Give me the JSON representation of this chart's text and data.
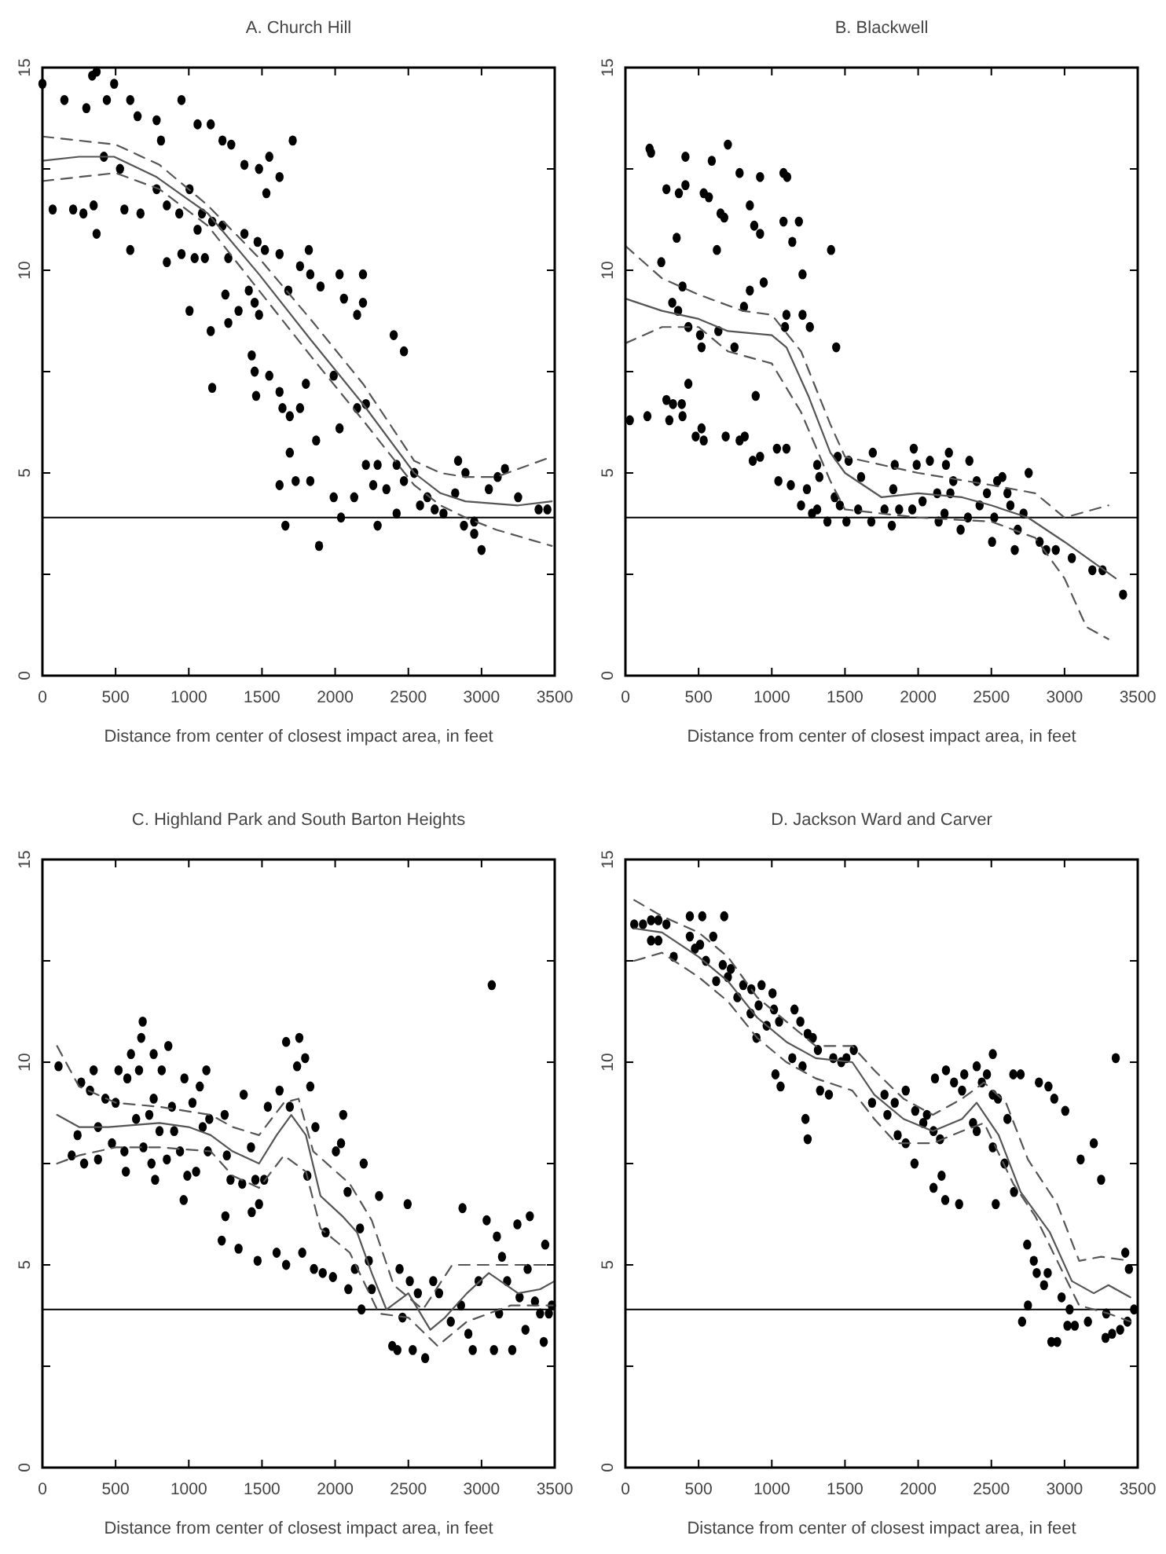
{
  "chart_data": [
    {
      "type": "scatter",
      "title": "A. Church Hill",
      "xlabel": "Distance from center of closest impact area, in feet",
      "xlim": [
        0,
        3500
      ],
      "ylim": [
        0,
        15
      ],
      "xticks": [
        0,
        500,
        1000,
        1500,
        2000,
        2500,
        3000,
        3500
      ],
      "yticks": [
        0,
        {
          "value": 2.5,
          "label": null
        },
        5,
        {
          "value": 7.5,
          "label": null
        },
        10,
        {
          "value": 12.5,
          "label": null
        },
        15
      ],
      "ref_lines": [
        {
          "axis": "y",
          "value": 3.9,
          "color": "#000000"
        }
      ],
      "series": [
        {
          "type": "scatter",
          "color": "#000000",
          "marker": "circle",
          "x": [
            0,
            150,
            340,
            370,
            300,
            440,
            490,
            600,
            650,
            780,
            950,
            810,
            1060,
            1150,
            1230,
            1290,
            1710,
            1550,
            1380,
            1480,
            1620,
            1530,
            420,
            530,
            70,
            210,
            280,
            350,
            560,
            670,
            780,
            850,
            935,
            1005,
            1090,
            1160,
            1060,
            1230,
            370,
            1380,
            1470,
            600,
            850,
            950,
            1040,
            1110,
            1270,
            1520,
            1620,
            1760,
            1830,
            2030,
            2190,
            1820,
            1250,
            1410,
            1450,
            1680,
            1900,
            2060,
            2190,
            2150,
            1005,
            1150,
            1270,
            1340,
            1480,
            2400,
            2470,
            1430,
            1450,
            1550,
            1460,
            1620,
            1640,
            1760,
            1800,
            1990,
            1160,
            2150,
            2210,
            2030,
            1690,
            1870,
            1690,
            1620,
            1730,
            1830,
            1660,
            1890,
            1990,
            2040,
            2130,
            2210,
            2260,
            2290,
            2290,
            2350,
            2420,
            2420,
            2470,
            2540,
            2580,
            2630,
            2680,
            2740,
            2820,
            2840,
            2890,
            2880,
            2950,
            2950,
            3000,
            3050,
            3110,
            3160,
            3250,
            3390,
            3450
          ],
          "values": [
            14.6,
            14.2,
            14.8,
            14.9,
            14.0,
            14.2,
            14.6,
            14.2,
            13.8,
            13.7,
            14.2,
            13.2,
            13.6,
            13.6,
            13.2,
            13.1,
            13.2,
            12.8,
            12.6,
            12.5,
            12.3,
            11.9,
            12.8,
            12.5,
            11.5,
            11.5,
            11.4,
            11.6,
            11.5,
            11.4,
            12.0,
            11.6,
            11.4,
            12.0,
            11.4,
            11.2,
            11.0,
            11.1,
            10.9,
            10.9,
            10.7,
            10.5,
            10.2,
            10.4,
            10.3,
            10.3,
            10.3,
            10.5,
            10.4,
            10.1,
            9.9,
            9.9,
            9.9,
            10.5,
            9.4,
            9.5,
            9.2,
            9.5,
            9.6,
            9.3,
            9.2,
            8.9,
            9.0,
            8.5,
            8.7,
            9.0,
            8.9,
            8.4,
            8.0,
            7.9,
            7.5,
            7.4,
            6.9,
            7.0,
            6.6,
            6.6,
            7.2,
            7.4,
            7.1,
            6.6,
            6.7,
            6.1,
            6.4,
            5.8,
            5.5,
            4.7,
            4.8,
            4.8,
            3.7,
            3.2,
            4.4,
            3.9,
            4.4,
            5.2,
            4.7,
            5.2,
            3.7,
            4.6,
            5.2,
            4.0,
            4.8,
            5.0,
            4.2,
            4.4,
            4.1,
            4.0,
            4.5,
            5.3,
            5.0,
            3.7,
            3.8,
            3.5,
            3.1,
            4.6,
            4.9,
            5.1,
            4.4,
            4.1,
            4.1
          ]
        },
        {
          "type": "line",
          "color": "#555555",
          "line_style": "solid",
          "marker": "none",
          "x": [
            0,
            250,
            490,
            780,
            1130,
            1480,
            1830,
            2190,
            2540,
            2720,
            2890,
            3250,
            3480
          ],
          "values": [
            12.7,
            12.8,
            12.8,
            12.3,
            11.4,
            9.9,
            8.3,
            6.7,
            5.0,
            4.5,
            4.3,
            4.2,
            4.3
          ]
        },
        {
          "type": "line",
          "color": "#555555",
          "line_style": "dashed",
          "marker": "none",
          "x": [
            0,
            500,
            800,
            1130,
            1480,
            1830,
            2190,
            2540,
            2720,
            2890,
            3100,
            3480
          ],
          "values": [
            13.3,
            13.1,
            12.6,
            11.6,
            10.3,
            8.8,
            7.2,
            5.3,
            5.0,
            4.9,
            4.9,
            5.4
          ]
        },
        {
          "type": "line",
          "color": "#555555",
          "line_style": "dashed",
          "marker": "none",
          "x": [
            0,
            500,
            800,
            1130,
            1480,
            1830,
            2190,
            2540,
            2720,
            2890,
            3100,
            3480
          ],
          "values": [
            12.2,
            12.4,
            12.0,
            11.1,
            9.5,
            7.9,
            6.3,
            4.7,
            4.2,
            3.9,
            3.6,
            3.2
          ]
        }
      ]
    },
    {
      "type": "scatter",
      "title": "B. Blackwell",
      "xlabel": "Distance from center of closest impact area, in feet",
      "xlim": [
        0,
        3500
      ],
      "ylim": [
        0,
        15
      ],
      "xticks": [
        0,
        500,
        1000,
        1500,
        2000,
        2500,
        3000,
        3500
      ],
      "yticks": [
        0,
        {
          "value": 2.5,
          "label": null
        },
        5,
        {
          "value": 7.5,
          "label": null
        },
        10,
        {
          "value": 12.5,
          "label": null
        },
        15
      ],
      "ref_lines": [
        {
          "axis": "y",
          "value": 3.9,
          "color": "#000000"
        }
      ],
      "series": [
        {
          "type": "scatter",
          "color": "#000000",
          "marker": "circle",
          "x": [
            165,
            175,
            700,
            410,
            590,
            780,
            920,
            1080,
            1105,
            280,
            365,
            410,
            535,
            570,
            650,
            675,
            850,
            880,
            920,
            1080,
            1185,
            1140,
            350,
            625,
            1405,
            245,
            1210,
            390,
            850,
            945,
            320,
            810,
            360,
            1100,
            1210,
            430,
            635,
            1090,
            1260,
            510,
            520,
            745,
            1440,
            430,
            30,
            150,
            280,
            325,
            385,
            300,
            390,
            890,
            520,
            480,
            535,
            685,
            780,
            815,
            920,
            870,
            1035,
            1100,
            1045,
            1130,
            1200,
            1240,
            1275,
            1310,
            1325,
            1310,
            1380,
            1430,
            1465,
            1450,
            1525,
            1510,
            1590,
            1610,
            1690,
            1680,
            1770,
            1820,
            1840,
            1830,
            1870,
            1960,
            1970,
            1990,
            2030,
            2080,
            2130,
            2140,
            2180,
            2190,
            2210,
            2220,
            2240,
            2290,
            2340,
            2350,
            2400,
            2420,
            2470,
            2505,
            2520,
            2540,
            2575,
            2610,
            2630,
            2660,
            2680,
            2720,
            2755,
            2830,
            2875,
            2940,
            3050,
            3190,
            3260,
            3400
          ],
          "values": [
            13.0,
            12.9,
            13.1,
            12.8,
            12.7,
            12.4,
            12.3,
            12.4,
            12.3,
            12.0,
            11.9,
            12.1,
            11.9,
            11.8,
            11.4,
            11.3,
            11.6,
            11.1,
            10.9,
            11.2,
            11.2,
            10.7,
            10.8,
            10.5,
            10.5,
            10.2,
            9.9,
            9.6,
            9.5,
            9.7,
            9.2,
            9.1,
            9.0,
            8.9,
            8.9,
            8.6,
            8.5,
            8.6,
            8.6,
            8.4,
            8.1,
            8.1,
            8.1,
            7.2,
            6.3,
            6.4,
            6.8,
            6.7,
            6.7,
            6.3,
            6.4,
            6.9,
            6.1,
            5.9,
            5.8,
            5.9,
            5.8,
            5.9,
            5.4,
            5.3,
            5.6,
            5.6,
            4.8,
            4.7,
            4.2,
            4.6,
            4.0,
            5.2,
            4.9,
            4.1,
            3.8,
            4.4,
            4.2,
            5.4,
            5.3,
            3.8,
            4.1,
            4.9,
            5.5,
            3.8,
            4.1,
            3.7,
            5.2,
            4.6,
            4.1,
            4.1,
            5.6,
            5.2,
            4.3,
            5.3,
            4.5,
            3.8,
            4.0,
            5.2,
            5.5,
            4.5,
            4.8,
            3.6,
            3.9,
            5.3,
            4.8,
            4.2,
            4.5,
            3.3,
            3.9,
            4.8,
            4.9,
            4.5,
            4.2,
            3.1,
            3.6,
            4.0,
            5.0,
            3.3,
            3.1,
            3.1,
            2.9,
            2.6,
            2.6,
            2.0
          ]
        },
        {
          "type": "line",
          "color": "#555555",
          "line_style": "solid",
          "marker": "none",
          "x": [
            0,
            250,
            500,
            700,
            1000,
            1100,
            1250,
            1400,
            1500,
            1750,
            2000,
            2300,
            2500,
            2750,
            3000,
            3350
          ],
          "values": [
            9.3,
            9.0,
            8.8,
            8.5,
            8.4,
            8.1,
            6.9,
            5.5,
            5.0,
            4.4,
            4.5,
            4.4,
            4.2,
            3.9,
            3.3,
            2.4
          ]
        },
        {
          "type": "line",
          "color": "#555555",
          "line_style": "dashed",
          "marker": "none",
          "x": [
            0,
            250,
            500,
            800,
            1000,
            1200,
            1400,
            1500,
            2000,
            2500,
            2800,
            3000,
            3300
          ],
          "values": [
            10.6,
            9.8,
            9.4,
            9.0,
            8.9,
            8.0,
            6.2,
            5.4,
            5.0,
            4.7,
            4.5,
            3.9,
            4.2
          ]
        },
        {
          "type": "line",
          "color": "#555555",
          "line_style": "dashed",
          "marker": "none",
          "x": [
            0,
            250,
            500,
            700,
            1000,
            1200,
            1400,
            1500,
            2000,
            2500,
            2800,
            3000,
            3150,
            3300
          ],
          "values": [
            8.2,
            8.6,
            8.6,
            8.0,
            7.7,
            6.5,
            4.8,
            4.1,
            3.9,
            3.8,
            3.4,
            2.4,
            1.2,
            0.9
          ]
        }
      ]
    },
    {
      "type": "scatter",
      "title": "C. Highland Park and South Barton Heights",
      "xlabel": "Distance from center of closest impact area, in feet",
      "xlim": [
        0,
        3500
      ],
      "ylim": [
        0,
        15
      ],
      "xticks": [
        0,
        500,
        1000,
        1500,
        2000,
        2500,
        3000,
        3500
      ],
      "yticks": [
        0,
        {
          "value": 2.5,
          "label": null
        },
        5,
        {
          "value": 7.5,
          "label": null
        },
        10,
        {
          "value": 12.5,
          "label": null
        },
        15
      ],
      "ref_lines": [
        {
          "axis": "y",
          "value": 3.9,
          "color": "#000000"
        }
      ],
      "series": [
        {
          "type": "scatter",
          "color": "#000000",
          "marker": "circle",
          "x": [
            110,
            200,
            240,
            265,
            285,
            325,
            350,
            380,
            380,
            430,
            475,
            500,
            520,
            560,
            570,
            580,
            605,
            640,
            660,
            675,
            685,
            690,
            730,
            745,
            760,
            770,
            760,
            800,
            815,
            850,
            860,
            885,
            900,
            940,
            965,
            970,
            990,
            1025,
            1050,
            1075,
            1095,
            1120,
            1130,
            1140,
            1225,
            1245,
            1250,
            1260,
            1285,
            1340,
            1365,
            1375,
            1425,
            1430,
            1455,
            1470,
            1480,
            1515,
            1540,
            1600,
            1620,
            1665,
            1665,
            1690,
            1740,
            1755,
            1775,
            1795,
            1830,
            1810,
            1855,
            1865,
            1915,
            1935,
            1985,
            2005,
            2040,
            2055,
            2085,
            2090,
            2135,
            2170,
            2180,
            2195,
            2230,
            2250,
            2300,
            2390,
            2425,
            2440,
            2460,
            2495,
            2510,
            2530,
            2565,
            2615,
            2670,
            2710,
            2790,
            2860,
            2870,
            2910,
            2940,
            2980,
            3035,
            3070,
            3085,
            3105,
            3120,
            3140,
            3175,
            3210,
            3245,
            3260,
            3300,
            3315,
            3330,
            3365,
            3400,
            3425,
            3435,
            3460,
            3480
          ],
          "values": [
            9.9,
            7.7,
            8.2,
            9.5,
            7.5,
            9.3,
            9.8,
            8.4,
            7.6,
            9.1,
            8.0,
            9.0,
            9.8,
            7.8,
            7.3,
            9.6,
            10.2,
            8.6,
            9.8,
            10.6,
            11.0,
            7.9,
            8.7,
            7.5,
            9.1,
            7.1,
            10.2,
            8.3,
            9.8,
            7.6,
            10.4,
            8.9,
            8.3,
            7.8,
            6.6,
            9.6,
            7.2,
            9.0,
            7.3,
            9.4,
            8.4,
            9.8,
            7.8,
            8.6,
            5.6,
            8.7,
            6.2,
            7.7,
            7.1,
            5.4,
            7.0,
            9.2,
            7.9,
            6.3,
            7.1,
            5.1,
            6.5,
            7.1,
            8.9,
            5.3,
            9.3,
            10.5,
            5.0,
            8.9,
            9.9,
            10.6,
            5.3,
            10.1,
            9.4,
            7.2,
            4.9,
            8.4,
            4.8,
            5.8,
            4.7,
            7.8,
            8.0,
            8.7,
            6.8,
            4.4,
            4.9,
            5.9,
            3.9,
            7.5,
            5.1,
            4.4,
            6.7,
            3.0,
            2.9,
            4.9,
            3.7,
            6.5,
            4.6,
            2.9,
            4.3,
            2.7,
            4.6,
            4.3,
            3.6,
            4.0,
            6.4,
            3.3,
            2.9,
            4.6,
            6.1,
            11.9,
            2.9,
            5.7,
            3.8,
            5.2,
            4.6,
            2.9,
            6.0,
            4.2,
            3.4,
            4.9,
            6.2,
            4.1,
            3.8,
            3.1,
            5.5,
            3.8,
            4.0
          ]
        },
        {
          "type": "line",
          "color": "#555555",
          "line_style": "solid",
          "marker": "none",
          "x": [
            100,
            250,
            450,
            800,
            1000,
            1150,
            1300,
            1480,
            1600,
            1700,
            1800,
            1900,
            2050,
            2150,
            2250,
            2350,
            2500,
            2650,
            2750,
            2900,
            3050,
            3250,
            3400,
            3500
          ],
          "values": [
            8.7,
            8.4,
            8.4,
            8.5,
            8.4,
            8.2,
            7.8,
            7.5,
            8.2,
            8.7,
            8.2,
            6.7,
            6.2,
            5.8,
            4.8,
            3.9,
            4.3,
            3.4,
            3.7,
            4.3,
            4.8,
            4.3,
            4.4,
            4.6
          ]
        },
        {
          "type": "line",
          "color": "#555555",
          "line_style": "dashed",
          "marker": "none",
          "x": [
            100,
            250,
            500,
            800,
            1150,
            1300,
            1480,
            1650,
            1750,
            1850,
            2100,
            2250,
            2400,
            2600,
            2800,
            3000,
            3500
          ],
          "values": [
            10.4,
            9.4,
            9.0,
            8.9,
            8.7,
            8.4,
            8.2,
            9.0,
            9.1,
            7.8,
            7.0,
            6.1,
            4.5,
            3.9,
            5.0,
            5.0,
            5.0
          ]
        },
        {
          "type": "line",
          "color": "#555555",
          "line_style": "dashed",
          "marker": "none",
          "x": [
            100,
            250,
            500,
            800,
            1150,
            1300,
            1480,
            1650,
            1800,
            1900,
            2100,
            2300,
            2500,
            2700,
            2900,
            3200,
            3500
          ],
          "values": [
            7.5,
            7.7,
            7.9,
            7.9,
            7.8,
            7.2,
            6.9,
            7.7,
            7.3,
            5.9,
            5.3,
            3.8,
            3.7,
            3.0,
            3.6,
            4.0,
            4.0
          ]
        }
      ]
    },
    {
      "type": "scatter",
      "title": "D. Jackson Ward and Carver",
      "xlabel": "Distance from center of closest impact area, in feet",
      "xlim": [
        0,
        3500
      ],
      "ylim": [
        0,
        15
      ],
      "xticks": [
        0,
        500,
        1000,
        1500,
        2000,
        2500,
        3000,
        3500
      ],
      "yticks": [
        0,
        {
          "value": 2.5,
          "label": null
        },
        5,
        {
          "value": 7.5,
          "label": null
        },
        10,
        {
          "value": 12.5,
          "label": null
        },
        15
      ],
      "ref_lines": [
        {
          "axis": "y",
          "value": 3.9,
          "color": "#000000"
        }
      ],
      "series": [
        {
          "type": "scatter",
          "color": "#000000",
          "marker": "circle",
          "x": [
            60,
            120,
            175,
            225,
            280,
            175,
            225,
            330,
            440,
            525,
            440,
            475,
            510,
            550,
            600,
            675,
            620,
            665,
            720,
            700,
            765,
            805,
            860,
            855,
            910,
            930,
            895,
            965,
            1005,
            1015,
            1050,
            1025,
            1060,
            1140,
            1155,
            1210,
            1195,
            1245,
            1280,
            1315,
            1230,
            1245,
            1330,
            1390,
            1420,
            1475,
            1510,
            1560,
            1685,
            1770,
            1790,
            1840,
            1860,
            1915,
            1915,
            1975,
            1980,
            2035,
            2060,
            2105,
            2115,
            2150,
            2105,
            2160,
            2185,
            2190,
            2245,
            2280,
            2300,
            2315,
            2375,
            2400,
            2400,
            2435,
            2470,
            2510,
            2510,
            2545,
            2510,
            2530,
            2590,
            2610,
            2650,
            2655,
            2700,
            2710,
            2745,
            2750,
            2790,
            2810,
            2825,
            2860,
            2885,
            2890,
            2910,
            2950,
            2980,
            2930,
            3005,
            3020,
            3035,
            3070,
            3110,
            3160,
            3200,
            3250,
            3280,
            3285,
            3350,
            3325,
            3380,
            3415,
            3440,
            3430,
            3475
          ],
          "values": [
            13.4,
            13.4,
            13.5,
            13.5,
            13.4,
            13.0,
            13.0,
            12.6,
            13.6,
            13.6,
            13.1,
            12.8,
            12.9,
            12.5,
            13.1,
            13.6,
            12.0,
            12.4,
            12.3,
            12.1,
            11.6,
            11.9,
            11.8,
            11.2,
            11.4,
            11.9,
            10.6,
            10.9,
            11.7,
            11.3,
            11.0,
            9.7,
            9.4,
            10.1,
            11.3,
            9.9,
            11.0,
            10.7,
            10.6,
            10.3,
            8.6,
            8.1,
            9.3,
            9.2,
            10.1,
            10.0,
            10.1,
            10.3,
            9.0,
            9.2,
            8.7,
            9.0,
            8.2,
            9.3,
            8.0,
            7.5,
            8.8,
            8.5,
            8.7,
            8.3,
            9.6,
            8.1,
            6.9,
            7.2,
            6.6,
            9.8,
            9.5,
            6.5,
            9.3,
            9.7,
            8.5,
            8.3,
            9.9,
            9.5,
            9.7,
            10.2,
            9.2,
            9.1,
            7.9,
            6.5,
            7.5,
            8.6,
            9.7,
            6.8,
            9.7,
            3.6,
            5.5,
            4.0,
            5.1,
            4.8,
            9.5,
            4.5,
            4.8,
            9.4,
            3.1,
            3.1,
            4.2,
            9.1,
            8.8,
            3.5,
            3.9,
            3.5,
            7.6,
            3.6,
            8.0,
            7.1,
            3.2,
            3.8,
            10.1,
            3.3,
            3.4,
            5.3,
            4.9,
            3.6,
            3.9
          ]
        },
        {
          "type": "line",
          "color": "#555555",
          "line_style": "solid",
          "marker": "none",
          "x": [
            60,
            250,
            500,
            700,
            900,
            1100,
            1300,
            1550,
            1700,
            1900,
            2100,
            2300,
            2400,
            2550,
            2700,
            2900,
            3050,
            3200,
            3300,
            3450
          ],
          "values": [
            13.3,
            13.2,
            12.6,
            12.0,
            11.1,
            10.5,
            10.1,
            10.0,
            9.2,
            8.6,
            8.3,
            8.6,
            9.0,
            8.2,
            6.8,
            5.8,
            4.6,
            4.3,
            4.5,
            4.2
          ]
        },
        {
          "type": "line",
          "color": "#555555",
          "line_style": "dashed",
          "marker": "none",
          "x": [
            60,
            250,
            500,
            700,
            900,
            1100,
            1300,
            1550,
            1700,
            1900,
            2100,
            2300,
            2450,
            2600,
            2750,
            2950,
            3100,
            3250,
            3450
          ],
          "values": [
            14.0,
            13.6,
            13.2,
            12.6,
            11.6,
            11.0,
            10.4,
            10.4,
            9.8,
            9.1,
            8.7,
            9.1,
            9.5,
            9.0,
            7.6,
            6.5,
            5.1,
            5.2,
            5.1
          ]
        },
        {
          "type": "line",
          "color": "#555555",
          "line_style": "dashed",
          "marker": "none",
          "x": [
            60,
            250,
            500,
            700,
            900,
            1100,
            1300,
            1550,
            1700,
            1850,
            2100,
            2300,
            2450,
            2650,
            2800,
            2950,
            3100,
            3300,
            3450
          ],
          "values": [
            12.5,
            12.7,
            12.1,
            11.5,
            10.6,
            10.0,
            9.6,
            9.3,
            8.6,
            8.0,
            8.0,
            8.3,
            8.5,
            7.0,
            6.2,
            5.1,
            4.0,
            3.8,
            3.6
          ]
        }
      ]
    }
  ]
}
